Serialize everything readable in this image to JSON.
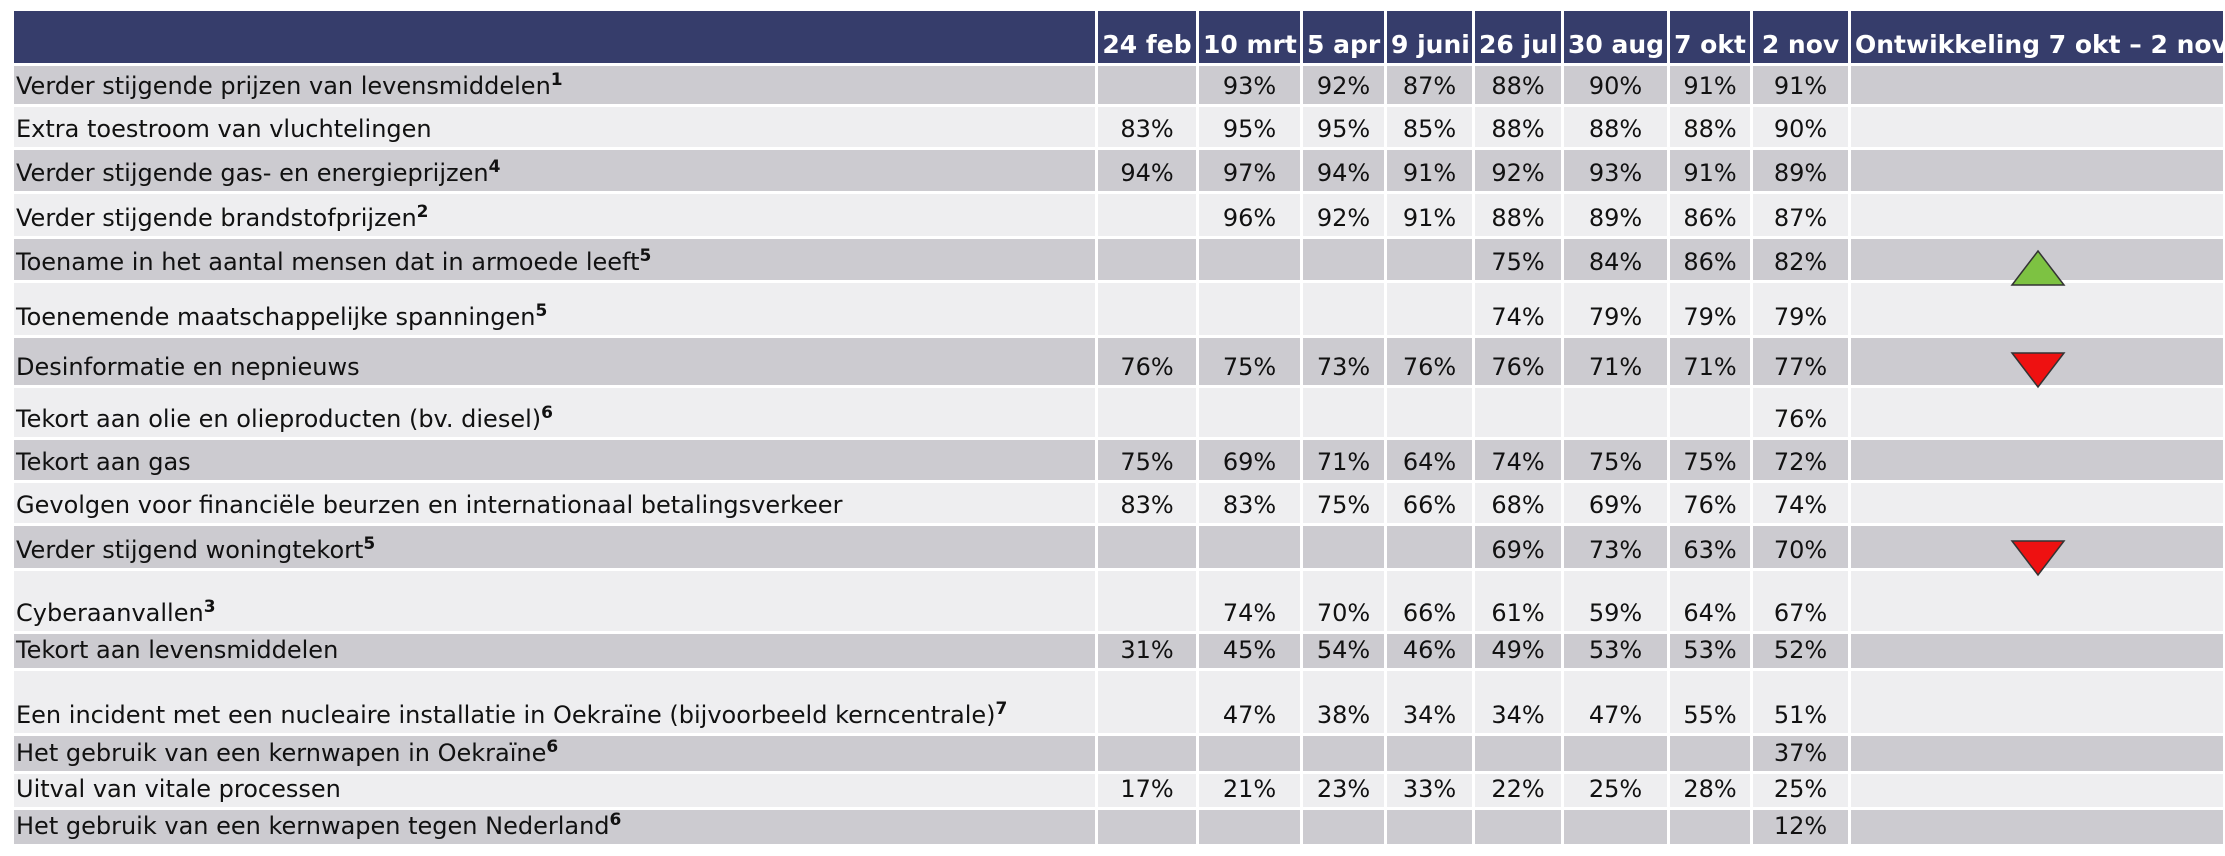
{
  "table": {
    "header": [
      "24 feb",
      "10 mrt",
      "5 apr",
      "9 juni",
      "26 jul",
      "30 aug",
      "7 okt",
      "2 nov",
      "Ontwikkeling 7 okt – 2 nov"
    ],
    "rows": [
      {
        "label": "Verder stijgende prijzen van levensmiddelen",
        "sup": "1",
        "values": [
          null,
          "93%",
          "92%",
          "87%",
          "88%",
          "90%",
          "91%",
          "91%"
        ]
      },
      {
        "label": "Extra toestroom van vluchtelingen",
        "values": [
          "83%",
          "95%",
          "95%",
          "85%",
          "88%",
          "88%",
          "88%",
          "90%"
        ]
      },
      {
        "label": "Verder stijgende gas- en energieprijzen",
        "sup": "4",
        "values": [
          "94%",
          "97%",
          "94%",
          "91%",
          "92%",
          "93%",
          "91%",
          "89%"
        ]
      },
      {
        "label": "Verder stijgende brandstofprijzen",
        "sup": "2",
        "values": [
          null,
          "96%",
          "92%",
          "91%",
          "88%",
          "89%",
          "86%",
          "87%"
        ]
      },
      {
        "label": "Toename in het aantal mensen dat in armoede leeft",
        "sup": "5",
        "values": [
          null,
          null,
          null,
          null,
          "75%",
          "84%",
          "86%",
          "82%"
        ]
      },
      {
        "label": "Toenemende maatschappelijke spanningen",
        "sup": "5",
        "values": [
          null,
          null,
          null,
          null,
          "74%",
          "79%",
          "79%",
          "79%"
        ]
      },
      {
        "label": "Desinformatie en nepnieuws",
        "values": [
          "76%",
          "75%",
          "73%",
          "76%",
          "76%",
          "71%",
          "71%",
          "77%"
        ]
      },
      {
        "label": "Tekort aan olie en olieproducten (bv. diesel)",
        "sup": "6",
        "values": [
          null,
          null,
          null,
          null,
          null,
          null,
          null,
          "76%"
        ]
      },
      {
        "label": "Tekort aan gas",
        "values": [
          "75%",
          "69%",
          "71%",
          "64%",
          "74%",
          "75%",
          "75%",
          "72%"
        ]
      },
      {
        "label": "Gevolgen voor financiële beurzen en internationaal betalingsverkeer",
        "values": [
          "83%",
          "83%",
          "75%",
          "66%",
          "68%",
          "69%",
          "76%",
          "74%"
        ]
      },
      {
        "label": "Verder stijgend woningtekort",
        "sup": "5",
        "values": [
          null,
          null,
          null,
          null,
          "69%",
          "73%",
          "63%",
          "70%"
        ]
      },
      {
        "label": "Cyberaanvallen",
        "sup": "3",
        "values": [
          null,
          "74%",
          "70%",
          "66%",
          "61%",
          "59%",
          "64%",
          "67%"
        ]
      },
      {
        "label": "Tekort aan levensmiddelen",
        "values": [
          "31%",
          "45%",
          "54%",
          "46%",
          "49%",
          "53%",
          "53%",
          "52%"
        ]
      },
      {
        "label": "Een incident met een nucleaire installatie in Oekraïne (bijvoorbeeld kerncentrale)",
        "sup": "7",
        "values": [
          null,
          "47%",
          "38%",
          "34%",
          "34%",
          "47%",
          "55%",
          "51%"
        ]
      },
      {
        "label": "Het gebruik van een kernwapen in Oekraïne",
        "sup": "6",
        "values": [
          null,
          null,
          null,
          null,
          null,
          null,
          null,
          "37%"
        ]
      },
      {
        "label": "Uitval van vitale processen",
        "values": [
          "17%",
          "21%",
          "23%",
          "33%",
          "22%",
          "25%",
          "28%",
          "25%"
        ]
      },
      {
        "label": "Het gebruik van een kernwapen tegen Nederland",
        "sup": "6",
        "values": [
          null,
          null,
          null,
          null,
          null,
          null,
          null,
          "12%"
        ]
      }
    ]
  }
}
